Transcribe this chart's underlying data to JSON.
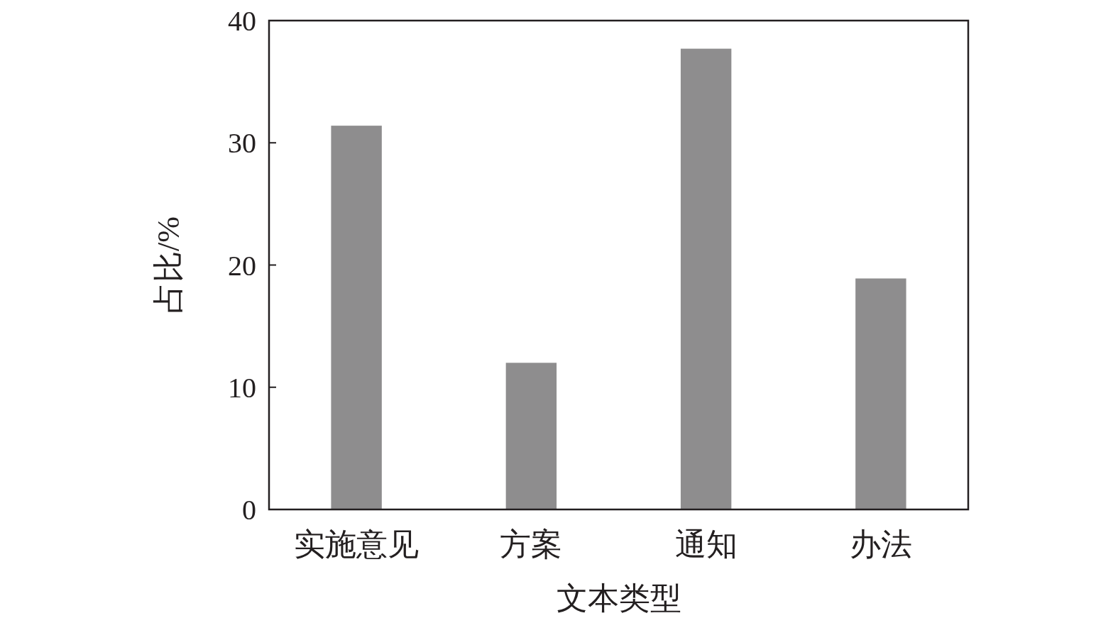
{
  "chart_data": {
    "type": "bar",
    "categories": [
      "实施意见",
      "方案",
      "通知",
      "办法"
    ],
    "values": [
      31.4,
      12.0,
      37.7,
      18.9
    ],
    "color": "#8e8d8e",
    "xlabel": "文本类型",
    "ylabel": "占比/%",
    "ylim": [
      0,
      40
    ],
    "yticks": [
      0,
      10,
      20,
      30,
      40
    ]
  }
}
